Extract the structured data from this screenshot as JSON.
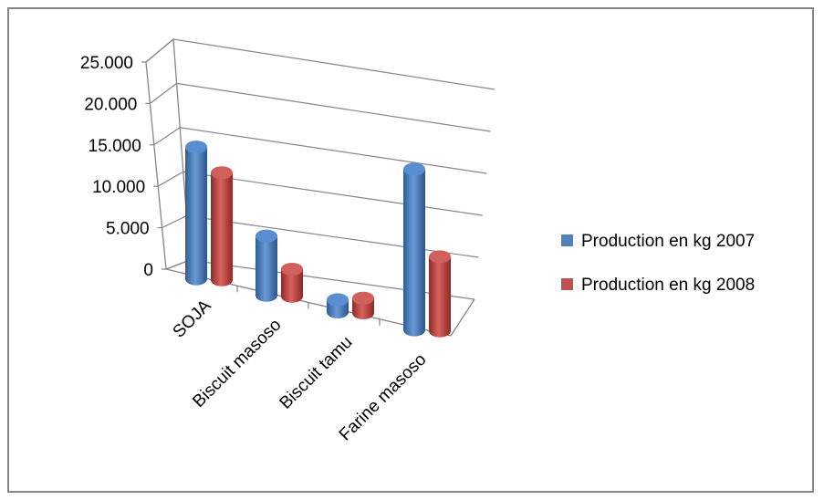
{
  "chart_data": {
    "type": "bar",
    "categories": [
      "SOJA",
      "Biscuit masoso",
      "Biscuit  tamu",
      "Farine masoso"
    ],
    "series": [
      {
        "name": "Production en kg  2007",
        "values": [
          16000,
          7200,
          1500,
          19500
        ],
        "color": "#4F81BD"
      },
      {
        "name": "Production en kg  2008",
        "values": [
          13000,
          3300,
          1800,
          9000
        ],
        "color": "#C0504D"
      }
    ],
    "ylim": [
      0,
      25000
    ],
    "y_ticks": [
      "0",
      "5.000",
      "10.000",
      "15.000",
      "20.000",
      "25.000"
    ],
    "grid": true,
    "legend": "right",
    "style": "3d-cylinder"
  }
}
